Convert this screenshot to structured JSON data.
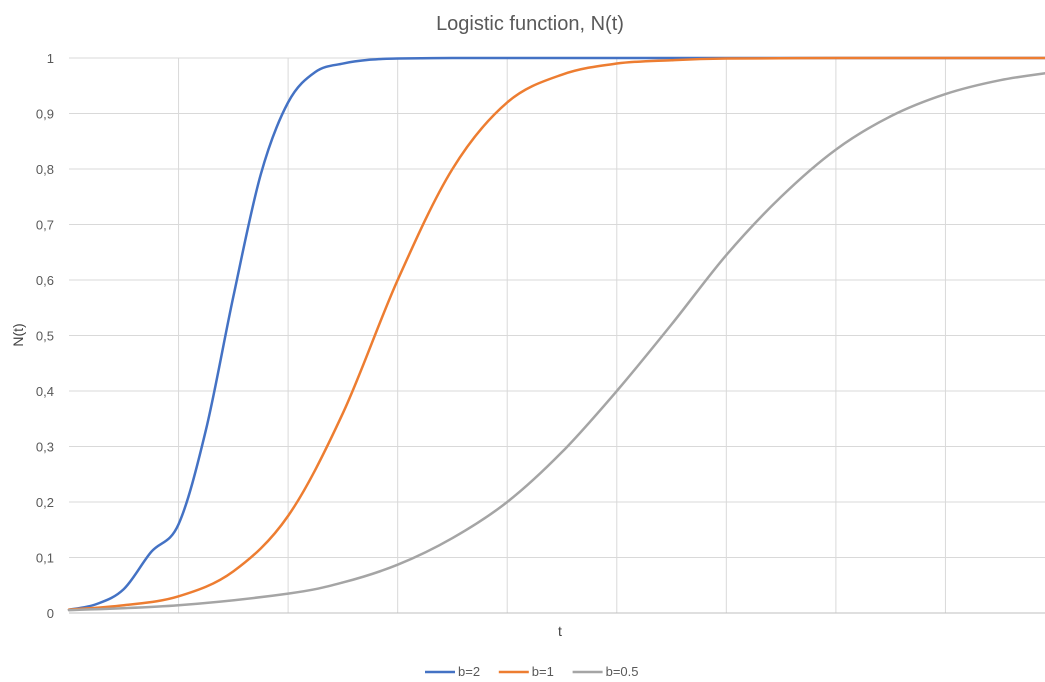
{
  "chart_data": {
    "type": "line",
    "title": "Logistic function, N(t)",
    "xlabel": "t",
    "ylabel": "N(t)",
    "xlim": [
      0,
      9
    ],
    "ylim": [
      0,
      1
    ],
    "x_ticks_visible": false,
    "y_ticks": [
      {
        "value": 0,
        "label": "0"
      },
      {
        "value": 0.1,
        "label": "0,1"
      },
      {
        "value": 0.2,
        "label": "0,2"
      },
      {
        "value": 0.3,
        "label": "0,3"
      },
      {
        "value": 0.4,
        "label": "0,4"
      },
      {
        "value": 0.5,
        "label": "0,5"
      },
      {
        "value": 0.6,
        "label": "0,6"
      },
      {
        "value": 0.7,
        "label": "0,7"
      },
      {
        "value": 0.8,
        "label": "0,8"
      },
      {
        "value": 0.9,
        "label": "0,9"
      },
      {
        "value": 1,
        "label": "1"
      }
    ],
    "vertical_gridlines_at_x": [
      1,
      2,
      3,
      4,
      5,
      6,
      7,
      8
    ],
    "grid": true,
    "legend_position": "bottom-center",
    "series": [
      {
        "name": "b=2",
        "color": "#4472C4",
        "x": [
          0,
          0.25,
          0.5,
          0.75,
          1,
          1.25,
          1.5,
          1.75,
          2,
          2.25,
          2.5,
          2.75,
          3,
          3.5,
          4,
          5,
          6,
          7,
          8,
          9
        ],
        "y": [
          0.006,
          0.016,
          0.043,
          0.11,
          0.16,
          0.33,
          0.57,
          0.79,
          0.92,
          0.975,
          0.99,
          0.997,
          0.999,
          1.0,
          1.0,
          1.0,
          1.0,
          1.0,
          1.0,
          1.0
        ]
      },
      {
        "name": "b=1",
        "color": "#ED7D31",
        "x": [
          0,
          0.5,
          1,
          1.5,
          2,
          2.5,
          3,
          3.5,
          4,
          4.5,
          5,
          5.5,
          6,
          7,
          8,
          9
        ],
        "y": [
          0.006,
          0.014,
          0.03,
          0.075,
          0.175,
          0.36,
          0.6,
          0.8,
          0.92,
          0.97,
          0.99,
          0.996,
          0.999,
          1.0,
          1.0,
          1.0
        ]
      },
      {
        "name": "b=0.5",
        "color": "#A5A5A5",
        "x": [
          0,
          1,
          2,
          2.5,
          3,
          3.5,
          4,
          4.5,
          5,
          5.5,
          6,
          6.5,
          7,
          7.5,
          8,
          8.5,
          9
        ],
        "y": [
          0.005,
          0.014,
          0.035,
          0.055,
          0.087,
          0.135,
          0.2,
          0.29,
          0.4,
          0.52,
          0.645,
          0.75,
          0.835,
          0.895,
          0.935,
          0.96,
          0.975
        ]
      }
    ]
  }
}
